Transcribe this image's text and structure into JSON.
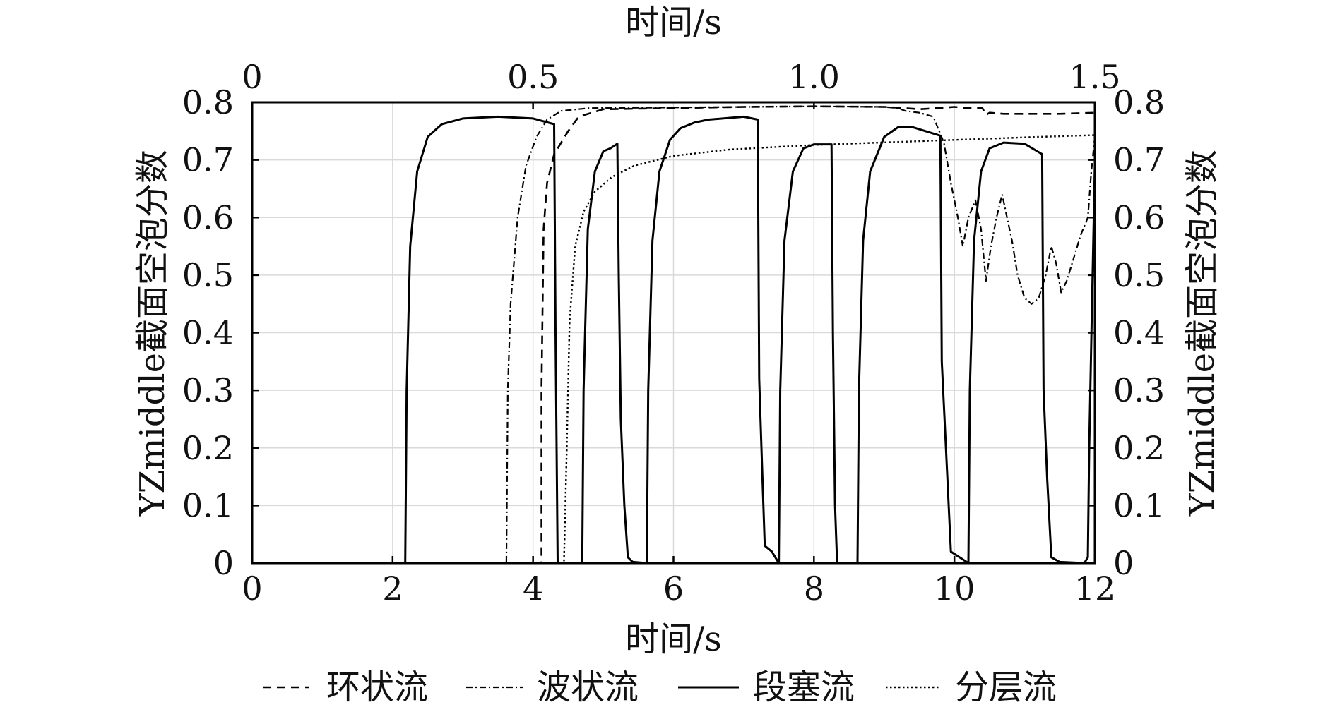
{
  "chart_data": {
    "type": "line",
    "bottom_axis": {
      "label": "时间/s",
      "ticks": [
        "0",
        "2",
        "4",
        "6",
        "8",
        "10",
        "12"
      ],
      "range": [
        0,
        12
      ]
    },
    "top_axis": {
      "label": "时间/s",
      "ticks": [
        "0",
        "0.5",
        "1.0",
        "1.5"
      ],
      "range": [
        0,
        1.5
      ],
      "applies_to_series": "分层流"
    },
    "left_axis": {
      "label": "YZmiddle截面空泡分数",
      "ticks": [
        "0",
        "0.1",
        "0.2",
        "0.3",
        "0.4",
        "0.5",
        "0.6",
        "0.7",
        "0.8"
      ],
      "range": [
        0,
        0.8
      ]
    },
    "right_axis": {
      "label": "YZmiddle截面空泡分数",
      "ticks": [
        "0",
        "0.1",
        "0.2",
        "0.3",
        "0.4",
        "0.5",
        "0.6",
        "0.7",
        "0.8"
      ],
      "range": [
        0,
        0.8
      ]
    },
    "grid": true,
    "legend_position": "bottom",
    "series": [
      {
        "name": "环状流",
        "dash": "dashed",
        "x_axis": "bottom",
        "points": [
          [
            0,
            0
          ],
          [
            4.12,
            0
          ],
          [
            4.12,
            0.3
          ],
          [
            4.15,
            0.58
          ],
          [
            4.2,
            0.66
          ],
          [
            4.3,
            0.71
          ],
          [
            4.5,
            0.75
          ],
          [
            4.65,
            0.775
          ],
          [
            5.0,
            0.788
          ],
          [
            6,
            0.79
          ],
          [
            7,
            0.792
          ],
          [
            8,
            0.793
          ],
          [
            9,
            0.792
          ],
          [
            9.3,
            0.79
          ],
          [
            9.5,
            0.788
          ],
          [
            10,
            0.792
          ],
          [
            10.2,
            0.79
          ],
          [
            10.4,
            0.79
          ],
          [
            10.45,
            0.778
          ],
          [
            10.5,
            0.782
          ],
          [
            10.7,
            0.78
          ],
          [
            11.5,
            0.78
          ],
          [
            12,
            0.782
          ]
        ]
      },
      {
        "name": "波状流",
        "dash": "dash-dot",
        "x_axis": "bottom",
        "points": [
          [
            0,
            0
          ],
          [
            3.62,
            0
          ],
          [
            3.64,
            0.3
          ],
          [
            3.68,
            0.45
          ],
          [
            3.78,
            0.6
          ],
          [
            3.9,
            0.69
          ],
          [
            4.05,
            0.74
          ],
          [
            4.2,
            0.77
          ],
          [
            4.4,
            0.785
          ],
          [
            4.8,
            0.79
          ],
          [
            6,
            0.791
          ],
          [
            8,
            0.793
          ],
          [
            9,
            0.792
          ],
          [
            9.2,
            0.79
          ],
          [
            9.3,
            0.785
          ],
          [
            9.5,
            0.782
          ],
          [
            9.7,
            0.775
          ],
          [
            9.85,
            0.73
          ],
          [
            9.95,
            0.66
          ],
          [
            10.05,
            0.6
          ],
          [
            10.12,
            0.55
          ],
          [
            10.2,
            0.6
          ],
          [
            10.3,
            0.63
          ],
          [
            10.38,
            0.58
          ],
          [
            10.45,
            0.49
          ],
          [
            10.52,
            0.55
          ],
          [
            10.6,
            0.6
          ],
          [
            10.68,
            0.64
          ],
          [
            10.75,
            0.6
          ],
          [
            10.82,
            0.56
          ],
          [
            10.9,
            0.5
          ],
          [
            11.0,
            0.46
          ],
          [
            11.1,
            0.45
          ],
          [
            11.2,
            0.46
          ],
          [
            11.3,
            0.5
          ],
          [
            11.38,
            0.55
          ],
          [
            11.45,
            0.52
          ],
          [
            11.52,
            0.47
          ],
          [
            11.6,
            0.49
          ],
          [
            11.7,
            0.53
          ],
          [
            11.8,
            0.57
          ],
          [
            11.9,
            0.6
          ],
          [
            11.95,
            0.68
          ],
          [
            12,
            0.74
          ]
        ]
      },
      {
        "name": "段塞流",
        "dash": "solid",
        "x_axis": "bottom",
        "points": [
          [
            0,
            0
          ],
          [
            2.18,
            0
          ],
          [
            2.2,
            0.3
          ],
          [
            2.25,
            0.55
          ],
          [
            2.35,
            0.68
          ],
          [
            2.5,
            0.74
          ],
          [
            2.7,
            0.762
          ],
          [
            3.0,
            0.772
          ],
          [
            3.5,
            0.775
          ],
          [
            4.0,
            0.772
          ],
          [
            4.3,
            0.762
          ],
          [
            4.32,
            0.4
          ],
          [
            4.35,
            0
          ],
          [
            4.7,
            0
          ],
          [
            4.72,
            0.3
          ],
          [
            4.78,
            0.58
          ],
          [
            4.88,
            0.68
          ],
          [
            5.0,
            0.715
          ],
          [
            5.1,
            0.72
          ],
          [
            5.2,
            0.728
          ],
          [
            5.22,
            0.5
          ],
          [
            5.25,
            0.25
          ],
          [
            5.3,
            0.1
          ],
          [
            5.35,
            0.01
          ],
          [
            5.42,
            0.002
          ],
          [
            5.62,
            0
          ],
          [
            5.64,
            0.3
          ],
          [
            5.7,
            0.56
          ],
          [
            5.8,
            0.68
          ],
          [
            5.95,
            0.735
          ],
          [
            6.1,
            0.755
          ],
          [
            6.3,
            0.765
          ],
          [
            6.5,
            0.77
          ],
          [
            7.0,
            0.775
          ],
          [
            7.2,
            0.77
          ],
          [
            7.22,
            0.32
          ],
          [
            7.26,
            0.17
          ],
          [
            7.3,
            0.03
          ],
          [
            7.4,
            0.02
          ],
          [
            7.5,
            0
          ],
          [
            7.52,
            0.3
          ],
          [
            7.58,
            0.56
          ],
          [
            7.7,
            0.68
          ],
          [
            7.85,
            0.72
          ],
          [
            8.0,
            0.727
          ],
          [
            8.25,
            0.727
          ],
          [
            8.27,
            0.4
          ],
          [
            8.3,
            0.1
          ],
          [
            8.33,
            0
          ],
          [
            8.62,
            0
          ],
          [
            8.64,
            0.3
          ],
          [
            8.7,
            0.56
          ],
          [
            8.8,
            0.68
          ],
          [
            9.0,
            0.74
          ],
          [
            9.2,
            0.757
          ],
          [
            9.4,
            0.757
          ],
          [
            9.8,
            0.742
          ],
          [
            9.82,
            0.35
          ],
          [
            9.88,
            0.2
          ],
          [
            9.95,
            0.02
          ],
          [
            10.2,
            0
          ],
          [
            10.22,
            0.3
          ],
          [
            10.28,
            0.56
          ],
          [
            10.38,
            0.68
          ],
          [
            10.5,
            0.72
          ],
          [
            10.7,
            0.73
          ],
          [
            11.0,
            0.728
          ],
          [
            11.25,
            0.71
          ],
          [
            11.27,
            0.3
          ],
          [
            11.32,
            0.15
          ],
          [
            11.38,
            0.01
          ],
          [
            11.5,
            0.002
          ],
          [
            11.85,
            0
          ],
          [
            11.9,
            0.01
          ],
          [
            11.92,
            0.2
          ],
          [
            11.96,
            0.45
          ],
          [
            12,
            0.69
          ]
        ]
      },
      {
        "name": "分层流",
        "dash": "dotted",
        "x_axis": "top",
        "points": [
          [
            0,
            0
          ],
          [
            0.555,
            0
          ],
          [
            0.56,
            0.2
          ],
          [
            0.565,
            0.42
          ],
          [
            0.575,
            0.55
          ],
          [
            0.59,
            0.61
          ],
          [
            0.61,
            0.645
          ],
          [
            0.64,
            0.67
          ],
          [
            0.68,
            0.69
          ],
          [
            0.75,
            0.707
          ],
          [
            0.85,
            0.718
          ],
          [
            1.0,
            0.726
          ],
          [
            1.2,
            0.733
          ],
          [
            1.4,
            0.74
          ],
          [
            1.5,
            0.743
          ]
        ]
      }
    ]
  },
  "legend": [
    {
      "label": "环状流",
      "dash": "dashed"
    },
    {
      "label": "波状流",
      "dash": "dash-dot"
    },
    {
      "label": "段塞流",
      "dash": "solid"
    },
    {
      "label": "分层流",
      "dash": "dotted"
    }
  ]
}
